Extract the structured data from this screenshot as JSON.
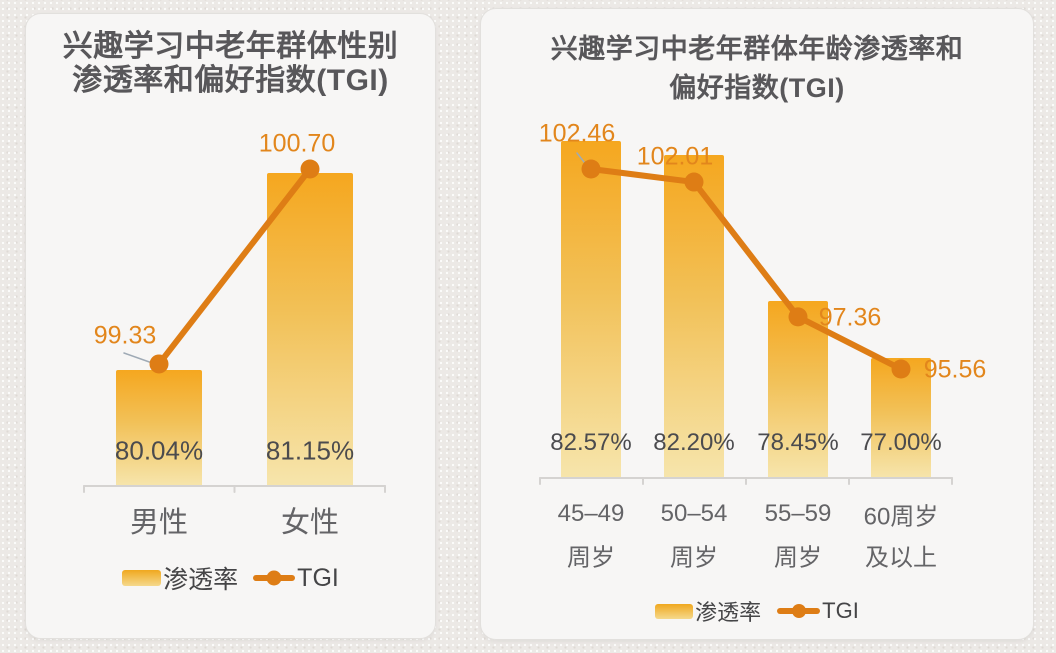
{
  "page": {
    "background_color": "#ECE9E6",
    "card_background": "#F7F6F5"
  },
  "colors": {
    "bar_gradient_top": "#F5A71F",
    "bar_gradient_bottom": "#F6E5AC",
    "tgi_line": "#DE7D15",
    "tgi_value_label": "#E2861C",
    "percent_label": "#4B4B4E",
    "category_label": "#646467",
    "title": "#58575A",
    "axis": "#D5D3D1",
    "callout": "#9FAAB5"
  },
  "chart_data": [
    {
      "type": "bar",
      "subtype": "bar-line-combo",
      "title": "兴趣学习中老年群体性别渗透率和偏好指数(TGI)",
      "title_lines": [
        "兴趣学习中老年群体性别",
        "渗透率和偏好指数(TGI)"
      ],
      "categories": [
        "男性",
        "女性"
      ],
      "category_lines": [
        [
          "男性"
        ],
        [
          "女性"
        ]
      ],
      "series": [
        {
          "name": "渗透率",
          "type": "bar",
          "unit": "%",
          "values": [
            80.04,
            81.15
          ],
          "labels": [
            "80.04%",
            "81.15%"
          ]
        },
        {
          "name": "TGI",
          "type": "line",
          "values": [
            99.33,
            100.7
          ],
          "labels": [
            "99.33",
            "100.70"
          ]
        }
      ],
      "legend": [
        "渗透率",
        "TGI"
      ],
      "legend_position": "bottom",
      "grid": false,
      "bar_ylim": [
        79.39,
        81.15
      ],
      "line_ylim": [
        97.9,
        100.8
      ]
    },
    {
      "type": "bar",
      "subtype": "bar-line-combo",
      "title": "兴趣学习中老年群体年龄渗透率和偏好指数(TGI)",
      "title_lines": [
        "兴趣学习中老年群体年龄渗透率和",
        "偏好指数(TGI)"
      ],
      "categories": [
        "45–49周岁",
        "50–54周岁",
        "55–59周岁",
        "60周岁及以上"
      ],
      "category_lines": [
        [
          "45–49",
          "周岁"
        ],
        [
          "50–54",
          "周岁"
        ],
        [
          "55–59",
          "周岁"
        ],
        [
          "60周岁",
          "及以上"
        ]
      ],
      "series": [
        {
          "name": "渗透率",
          "type": "bar",
          "unit": "%",
          "values": [
            82.57,
            82.2,
            78.45,
            77.0
          ],
          "labels": [
            "82.57%",
            "82.20%",
            "78.45%",
            "77.00%"
          ]
        },
        {
          "name": "TGI",
          "type": "line",
          "values": [
            102.46,
            102.01,
            97.36,
            95.56
          ],
          "labels": [
            "102.46",
            "102.01",
            "97.36",
            "95.56"
          ]
        }
      ],
      "legend": [
        "渗透率",
        "TGI"
      ],
      "legend_position": "bottom",
      "grid": false,
      "bar_ylim": [
        73.9,
        82.57
      ],
      "line_ylim": [
        91.8,
        102.5
      ]
    }
  ]
}
